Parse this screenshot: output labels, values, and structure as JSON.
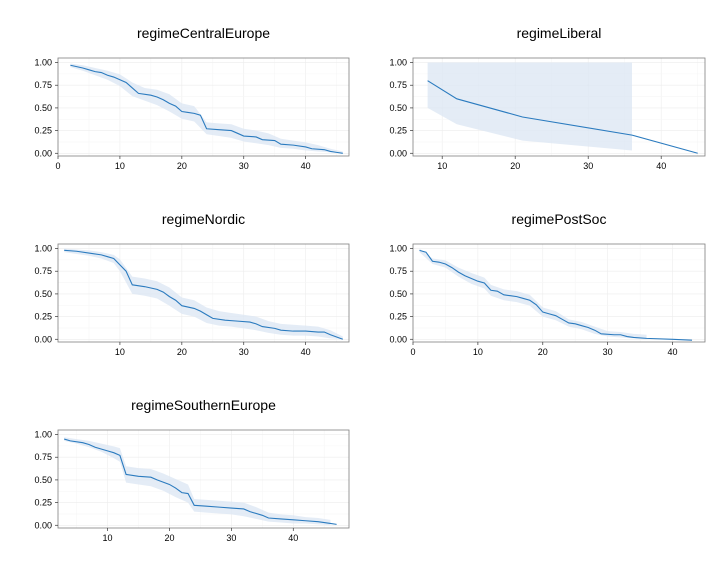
{
  "chart_data": [
    {
      "type": "line",
      "title": "regimeCentralEurope",
      "xlabel": "",
      "ylabel": "",
      "xlim": [
        0,
        47
      ],
      "ylim": [
        -0.03,
        1.05
      ],
      "xticks": [
        0,
        10,
        20,
        30,
        40
      ],
      "yticks": [
        "0.00",
        "0.25",
        "0.50",
        "0.75",
        "1.00"
      ],
      "grid": true,
      "line_color": "#2b7bbf",
      "band_color": "#dbe6f3",
      "points": [
        [
          2,
          0.97
        ],
        [
          4,
          0.94
        ],
        [
          5,
          0.92
        ],
        [
          6,
          0.9
        ],
        [
          7,
          0.89
        ],
        [
          8,
          0.86
        ],
        [
          9,
          0.84
        ],
        [
          10,
          0.81
        ],
        [
          11,
          0.78
        ],
        [
          12,
          0.72
        ],
        [
          13,
          0.66
        ],
        [
          15,
          0.64
        ],
        [
          16,
          0.62
        ],
        [
          17,
          0.59
        ],
        [
          18,
          0.55
        ],
        [
          19,
          0.52
        ],
        [
          20,
          0.46
        ],
        [
          21,
          0.45
        ],
        [
          22,
          0.44
        ],
        [
          23,
          0.42
        ],
        [
          24,
          0.27
        ],
        [
          26,
          0.26
        ],
        [
          28,
          0.25
        ],
        [
          29,
          0.22
        ],
        [
          30,
          0.19
        ],
        [
          32,
          0.18
        ],
        [
          33,
          0.15
        ],
        [
          35,
          0.14
        ],
        [
          36,
          0.1
        ],
        [
          38,
          0.09
        ],
        [
          40,
          0.07
        ],
        [
          41,
          0.05
        ],
        [
          43,
          0.04
        ],
        [
          44,
          0.02
        ],
        [
          45,
          0.01
        ],
        [
          46,
          0.0
        ]
      ],
      "lower": [
        [
          2,
          0.95
        ],
        [
          4,
          0.91
        ],
        [
          6,
          0.86
        ],
        [
          8,
          0.81
        ],
        [
          10,
          0.74
        ],
        [
          12,
          0.63
        ],
        [
          14,
          0.58
        ],
        [
          16,
          0.53
        ],
        [
          18,
          0.46
        ],
        [
          20,
          0.38
        ],
        [
          22,
          0.35
        ],
        [
          24,
          0.21
        ],
        [
          26,
          0.19
        ],
        [
          28,
          0.17
        ],
        [
          30,
          0.13
        ],
        [
          32,
          0.11
        ],
        [
          34,
          0.09
        ],
        [
          36,
          0.06
        ],
        [
          38,
          0.05
        ],
        [
          40,
          0.03
        ],
        [
          42,
          0.02
        ],
        [
          44,
          0.01
        ],
        [
          46,
          0.0
        ]
      ],
      "upper": [
        [
          2,
          0.99
        ],
        [
          4,
          0.97
        ],
        [
          6,
          0.94
        ],
        [
          8,
          0.91
        ],
        [
          10,
          0.87
        ],
        [
          12,
          0.78
        ],
        [
          14,
          0.72
        ],
        [
          16,
          0.7
        ],
        [
          18,
          0.65
        ],
        [
          20,
          0.55
        ],
        [
          22,
          0.52
        ],
        [
          24,
          0.34
        ],
        [
          26,
          0.33
        ],
        [
          28,
          0.32
        ],
        [
          30,
          0.27
        ],
        [
          32,
          0.25
        ],
        [
          34,
          0.22
        ],
        [
          36,
          0.16
        ],
        [
          38,
          0.14
        ],
        [
          40,
          0.12
        ],
        [
          42,
          0.09
        ],
        [
          44,
          0.05
        ],
        [
          46,
          0.02
        ]
      ]
    },
    {
      "type": "line",
      "title": "regimeLiberal",
      "xlabel": "",
      "ylabel": "",
      "xlim": [
        6,
        46
      ],
      "ylim": [
        -0.03,
        1.05
      ],
      "xticks": [
        10,
        20,
        30,
        40
      ],
      "yticks": [
        "0.00",
        "0.25",
        "0.50",
        "0.75",
        "1.00"
      ],
      "grid": true,
      "line_color": "#2b7bbf",
      "band_color": "#dbe6f3",
      "points": [
        [
          8,
          0.8
        ],
        [
          12,
          0.6
        ],
        [
          21,
          0.4
        ],
        [
          36,
          0.2
        ],
        [
          45,
          0.0
        ]
      ],
      "lower": [
        [
          8,
          0.5
        ],
        [
          12,
          0.32
        ],
        [
          21,
          0.14
        ],
        [
          36,
          0.03
        ]
      ],
      "upper": [
        [
          8,
          1.0
        ],
        [
          12,
          1.0
        ],
        [
          21,
          1.0
        ],
        [
          36,
          1.0
        ]
      ]
    },
    {
      "type": "line",
      "title": "regimeNordic",
      "xlabel": "",
      "ylabel": "",
      "xlim": [
        0,
        47
      ],
      "ylim": [
        -0.03,
        1.05
      ],
      "xticks": [
        10,
        20,
        30,
        40
      ],
      "yticks": [
        "0.00",
        "0.25",
        "0.50",
        "0.75",
        "1.00"
      ],
      "grid": true,
      "line_color": "#2b7bbf",
      "band_color": "#dbe6f3",
      "points": [
        [
          1,
          0.98
        ],
        [
          3,
          0.97
        ],
        [
          5,
          0.95
        ],
        [
          7,
          0.93
        ],
        [
          8,
          0.91
        ],
        [
          9,
          0.89
        ],
        [
          10,
          0.82
        ],
        [
          11,
          0.75
        ],
        [
          12,
          0.6
        ],
        [
          14,
          0.58
        ],
        [
          16,
          0.55
        ],
        [
          17,
          0.52
        ],
        [
          18,
          0.47
        ],
        [
          19,
          0.43
        ],
        [
          20,
          0.37
        ],
        [
          22,
          0.34
        ],
        [
          23,
          0.31
        ],
        [
          24,
          0.27
        ],
        [
          25,
          0.23
        ],
        [
          27,
          0.21
        ],
        [
          29,
          0.2
        ],
        [
          31,
          0.19
        ],
        [
          32,
          0.17
        ],
        [
          33,
          0.14
        ],
        [
          35,
          0.12
        ],
        [
          36,
          0.1
        ],
        [
          38,
          0.09
        ],
        [
          40,
          0.09
        ],
        [
          42,
          0.08
        ],
        [
          43,
          0.08
        ],
        [
          44,
          0.05
        ],
        [
          46,
          0.0
        ]
      ],
      "lower": [
        [
          1,
          0.96
        ],
        [
          3,
          0.94
        ],
        [
          5,
          0.92
        ],
        [
          7,
          0.89
        ],
        [
          9,
          0.84
        ],
        [
          10,
          0.75
        ],
        [
          12,
          0.5
        ],
        [
          14,
          0.48
        ],
        [
          16,
          0.45
        ],
        [
          18,
          0.37
        ],
        [
          20,
          0.28
        ],
        [
          22,
          0.25
        ],
        [
          24,
          0.18
        ],
        [
          26,
          0.15
        ],
        [
          28,
          0.14
        ],
        [
          30,
          0.12
        ],
        [
          32,
          0.1
        ],
        [
          34,
          0.07
        ],
        [
          36,
          0.05
        ],
        [
          38,
          0.04
        ],
        [
          40,
          0.04
        ],
        [
          42,
          0.03
        ],
        [
          44,
          0.01
        ],
        [
          46,
          0.0
        ]
      ],
      "upper": [
        [
          1,
          1.0
        ],
        [
          3,
          0.99
        ],
        [
          5,
          0.98
        ],
        [
          7,
          0.96
        ],
        [
          9,
          0.93
        ],
        [
          10,
          0.88
        ],
        [
          12,
          0.69
        ],
        [
          14,
          0.67
        ],
        [
          16,
          0.64
        ],
        [
          18,
          0.57
        ],
        [
          20,
          0.46
        ],
        [
          22,
          0.43
        ],
        [
          24,
          0.35
        ],
        [
          26,
          0.31
        ],
        [
          28,
          0.29
        ],
        [
          30,
          0.27
        ],
        [
          32,
          0.25
        ],
        [
          34,
          0.2
        ],
        [
          36,
          0.17
        ],
        [
          38,
          0.16
        ],
        [
          40,
          0.15
        ],
        [
          42,
          0.14
        ],
        [
          44,
          0.1
        ],
        [
          46,
          0.03
        ]
      ]
    },
    {
      "type": "line",
      "title": "regimePostSoc",
      "xlabel": "",
      "ylabel": "",
      "xlim": [
        0,
        45
      ],
      "ylim": [
        -0.03,
        1.05
      ],
      "xticks": [
        0,
        10,
        20,
        30,
        40
      ],
      "yticks": [
        "0.00",
        "0.25",
        "0.50",
        "0.75",
        "1.00"
      ],
      "grid": true,
      "line_color": "#2b7bbf",
      "band_color": "#dbe6f3",
      "points": [
        [
          1,
          0.98
        ],
        [
          2,
          0.96
        ],
        [
          3,
          0.86
        ],
        [
          4,
          0.85
        ],
        [
          5,
          0.83
        ],
        [
          6,
          0.79
        ],
        [
          7,
          0.74
        ],
        [
          8,
          0.7
        ],
        [
          9,
          0.67
        ],
        [
          10,
          0.64
        ],
        [
          11,
          0.62
        ],
        [
          12,
          0.54
        ],
        [
          13,
          0.53
        ],
        [
          14,
          0.49
        ],
        [
          15,
          0.48
        ],
        [
          16,
          0.47
        ],
        [
          17,
          0.45
        ],
        [
          18,
          0.43
        ],
        [
          19,
          0.38
        ],
        [
          20,
          0.3
        ],
        [
          21,
          0.28
        ],
        [
          22,
          0.26
        ],
        [
          23,
          0.22
        ],
        [
          24,
          0.18
        ],
        [
          25,
          0.17
        ],
        [
          26,
          0.15
        ],
        [
          27,
          0.13
        ],
        [
          28,
          0.1
        ],
        [
          29,
          0.06
        ],
        [
          31,
          0.05
        ],
        [
          32,
          0.05
        ],
        [
          33,
          0.03
        ],
        [
          34,
          0.02
        ],
        [
          36,
          0.01
        ],
        [
          40,
          0.0
        ],
        [
          43,
          -0.01
        ]
      ],
      "lower": [
        [
          1,
          0.96
        ],
        [
          3,
          0.83
        ],
        [
          5,
          0.79
        ],
        [
          7,
          0.69
        ],
        [
          9,
          0.61
        ],
        [
          11,
          0.56
        ],
        [
          12,
          0.48
        ],
        [
          14,
          0.43
        ],
        [
          16,
          0.41
        ],
        [
          18,
          0.37
        ],
        [
          20,
          0.25
        ],
        [
          22,
          0.21
        ],
        [
          24,
          0.14
        ],
        [
          26,
          0.11
        ],
        [
          28,
          0.06
        ],
        [
          30,
          0.03
        ],
        [
          32,
          0.02
        ],
        [
          34,
          0.01
        ],
        [
          36,
          0.0
        ]
      ],
      "upper": [
        [
          1,
          1.0
        ],
        [
          3,
          0.89
        ],
        [
          5,
          0.87
        ],
        [
          7,
          0.79
        ],
        [
          9,
          0.73
        ],
        [
          11,
          0.68
        ],
        [
          12,
          0.6
        ],
        [
          14,
          0.55
        ],
        [
          16,
          0.53
        ],
        [
          18,
          0.49
        ],
        [
          20,
          0.35
        ],
        [
          22,
          0.31
        ],
        [
          24,
          0.22
        ],
        [
          26,
          0.19
        ],
        [
          28,
          0.14
        ],
        [
          30,
          0.09
        ],
        [
          32,
          0.08
        ],
        [
          34,
          0.06
        ],
        [
          36,
          0.05
        ]
      ]
    },
    {
      "type": "line",
      "title": "regimeSouthernEurope",
      "xlabel": "",
      "ylabel": "",
      "xlim": [
        2,
        49
      ],
      "ylim": [
        -0.03,
        1.05
      ],
      "xticks": [
        10,
        20,
        30,
        40
      ],
      "yticks": [
        "0.00",
        "0.25",
        "0.50",
        "0.75",
        "1.00"
      ],
      "grid": true,
      "line_color": "#2b7bbf",
      "band_color": "#dbe6f3",
      "points": [
        [
          3,
          0.95
        ],
        [
          4,
          0.93
        ],
        [
          6,
          0.91
        ],
        [
          7,
          0.89
        ],
        [
          8,
          0.86
        ],
        [
          10,
          0.82
        ],
        [
          11,
          0.8
        ],
        [
          12,
          0.77
        ],
        [
          13,
          0.56
        ],
        [
          15,
          0.54
        ],
        [
          17,
          0.53
        ],
        [
          18,
          0.5
        ],
        [
          20,
          0.45
        ],
        [
          21,
          0.41
        ],
        [
          22,
          0.36
        ],
        [
          23,
          0.35
        ],
        [
          24,
          0.22
        ],
        [
          26,
          0.21
        ],
        [
          28,
          0.2
        ],
        [
          30,
          0.19
        ],
        [
          32,
          0.18
        ],
        [
          33,
          0.15
        ],
        [
          35,
          0.11
        ],
        [
          36,
          0.08
        ],
        [
          38,
          0.07
        ],
        [
          40,
          0.06
        ],
        [
          42,
          0.05
        ],
        [
          44,
          0.04
        ],
        [
          46,
          0.02
        ],
        [
          47,
          0.01
        ]
      ],
      "lower": [
        [
          3,
          0.93
        ],
        [
          5,
          0.9
        ],
        [
          7,
          0.86
        ],
        [
          9,
          0.81
        ],
        [
          11,
          0.74
        ],
        [
          12,
          0.7
        ],
        [
          13,
          0.47
        ],
        [
          15,
          0.45
        ],
        [
          17,
          0.43
        ],
        [
          19,
          0.38
        ],
        [
          21,
          0.31
        ],
        [
          23,
          0.25
        ],
        [
          24,
          0.15
        ],
        [
          26,
          0.14
        ],
        [
          28,
          0.13
        ],
        [
          30,
          0.12
        ],
        [
          32,
          0.1
        ],
        [
          34,
          0.07
        ],
        [
          36,
          0.04
        ],
        [
          38,
          0.03
        ],
        [
          40,
          0.02
        ],
        [
          42,
          0.02
        ],
        [
          44,
          0.01
        ],
        [
          46,
          0.0
        ]
      ],
      "upper": [
        [
          3,
          0.97
        ],
        [
          5,
          0.95
        ],
        [
          7,
          0.93
        ],
        [
          9,
          0.9
        ],
        [
          11,
          0.87
        ],
        [
          12,
          0.85
        ],
        [
          13,
          0.65
        ],
        [
          15,
          0.63
        ],
        [
          17,
          0.62
        ],
        [
          19,
          0.57
        ],
        [
          21,
          0.51
        ],
        [
          23,
          0.45
        ],
        [
          24,
          0.29
        ],
        [
          26,
          0.28
        ],
        [
          28,
          0.27
        ],
        [
          30,
          0.26
        ],
        [
          32,
          0.25
        ],
        [
          34,
          0.2
        ],
        [
          36,
          0.14
        ],
        [
          38,
          0.12
        ],
        [
          40,
          0.11
        ],
        [
          42,
          0.09
        ],
        [
          44,
          0.08
        ],
        [
          46,
          0.06
        ]
      ]
    }
  ]
}
